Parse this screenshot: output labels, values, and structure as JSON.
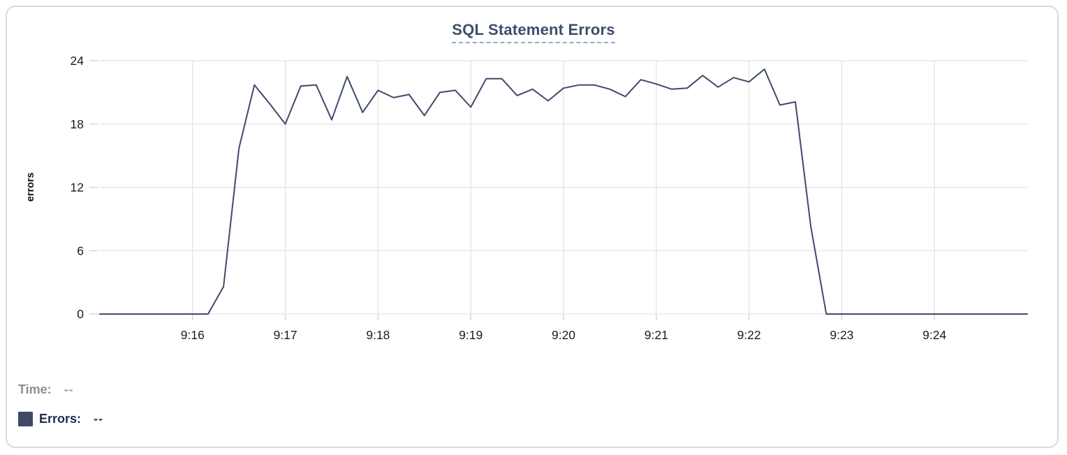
{
  "colors": {
    "series_line": "#3e4a6b",
    "series_swatch": "#3e4a66",
    "title_text": "#3d4d6d",
    "title_underline": "#9aa9c7",
    "gridline": "#e8e8e8",
    "tick_mark": "#d9d9d9",
    "axis_text": "#1c1c1c",
    "time_label_gray": "#8f8f8f"
  },
  "tooltip": {
    "time_label": "Time:",
    "time_value": "--",
    "errors_label": "Errors:",
    "errors_value": "--"
  },
  "chart_data": {
    "type": "line",
    "title": "SQL Statement Errors",
    "xlabel": "",
    "ylabel": "errors",
    "ylim": [
      0,
      24
    ],
    "y_ticks": [
      0,
      6,
      12,
      18,
      24
    ],
    "x_tick_labels": [
      "9:16",
      "9:17",
      "9:18",
      "9:19",
      "9:20",
      "9:21",
      "9:22",
      "9:23",
      "9:24"
    ],
    "grid": true,
    "legend_position": "none",
    "x_start": "9:15:00",
    "x_step_seconds": 10,
    "values": [
      0,
      0,
      0,
      0,
      0,
      0,
      0,
      0,
      2.6,
      15.7,
      21.7,
      19.9,
      18.0,
      21.6,
      21.7,
      18.4,
      22.5,
      19.1,
      21.2,
      20.5,
      20.8,
      18.8,
      21.0,
      21.2,
      19.6,
      22.3,
      22.3,
      20.7,
      21.3,
      20.2,
      21.4,
      21.7,
      21.7,
      21.3,
      20.6,
      22.2,
      21.8,
      21.3,
      21.4,
      22.6,
      21.5,
      22.4,
      22.0,
      23.2,
      19.8,
      20.1,
      8.3,
      0,
      0,
      0,
      0,
      0,
      0,
      0,
      0,
      0,
      0,
      0,
      0,
      0,
      0
    ]
  }
}
